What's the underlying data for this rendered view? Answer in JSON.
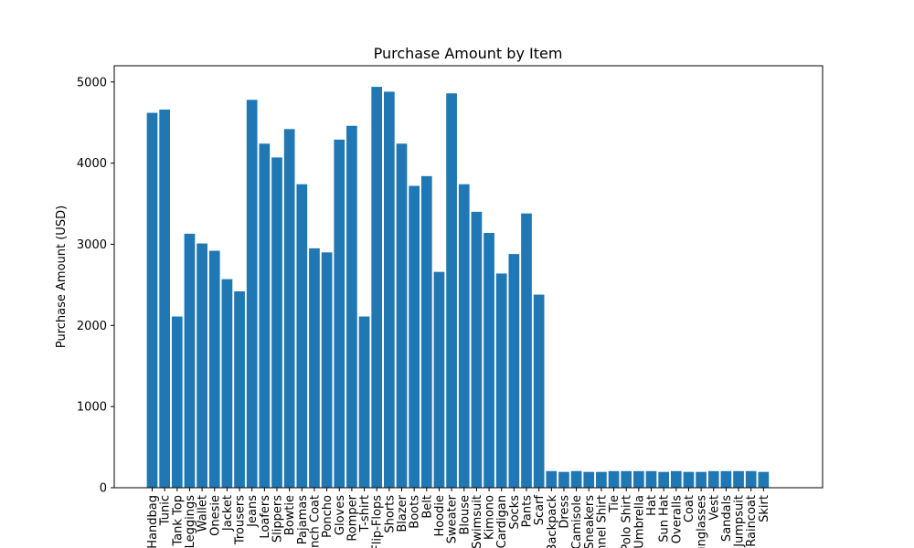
{
  "chart_data": {
    "type": "bar",
    "title": "Purchase Amount by Item",
    "xlabel": "",
    "ylabel": "Purchase Amount (USD)",
    "ylim": [
      0,
      5200
    ],
    "yticks": [
      0,
      1000,
      2000,
      3000,
      4000,
      5000
    ],
    "grid": false,
    "bar_color": "#1f77b4",
    "categories": [
      "Handbag",
      "Tunic",
      "Tank Top",
      "Leggings",
      "Wallet",
      "Onesie",
      "Jacket",
      "Trousers",
      "Jeans",
      "Loafers",
      "Slippers",
      "Bowtie",
      "Pajamas",
      "Trench Coat",
      "Poncho",
      "Gloves",
      "Romper",
      "T-shirt",
      "Flip-Flops",
      "Shorts",
      "Blazer",
      "Boots",
      "Belt",
      "Hoodie",
      "Sweater",
      "Blouse",
      "Swimsuit",
      "Kimono",
      "Cardigan",
      "Socks",
      "Pants",
      "Scarf",
      "Backpack",
      "Dress",
      "Camisole",
      "Sneakers",
      "Flannel Shirt",
      "Tie",
      "Polo Shirt",
      "Umbrella",
      "Hat",
      "Sun Hat",
      "Overalls",
      "Coat",
      "Sunglasses",
      "Vest",
      "Sandals",
      "Jumpsuit",
      "Raincoat",
      "Skirt"
    ],
    "values": [
      4620,
      4660,
      2110,
      3130,
      3010,
      2920,
      2570,
      2420,
      4780,
      4240,
      4070,
      4420,
      3740,
      2950,
      2900,
      4290,
      4460,
      2110,
      4940,
      4880,
      4240,
      3720,
      3840,
      2660,
      4860,
      3740,
      3400,
      3140,
      2640,
      2880,
      3380,
      2380,
      205,
      195,
      205,
      195,
      195,
      205,
      205,
      205,
      205,
      195,
      205,
      195,
      195,
      205,
      205,
      205,
      205,
      195
    ]
  }
}
